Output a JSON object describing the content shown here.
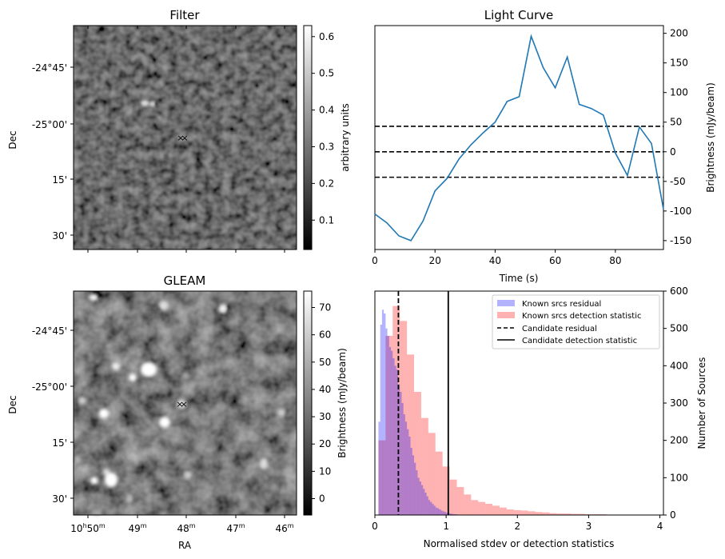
{
  "filter_panel": {
    "title": "Filter",
    "ylabel": "Dec",
    "yticks": [
      "-24°45'",
      "-25°00'",
      "15'",
      "30'"
    ],
    "colorbar": {
      "label": "arbitrary units",
      "ticks": [
        "0.1",
        "0.2",
        "0.3",
        "0.4",
        "0.5",
        "0.6"
      ],
      "range": [
        0.02,
        0.63
      ]
    }
  },
  "gleam_panel": {
    "title": "GLEAM",
    "xlabel": "RA",
    "ylabel": "Dec",
    "yticks": [
      "-24°45'",
      "-25°00'",
      "15'",
      "30'"
    ],
    "xticks": [
      {
        "main": "10",
        "sup1": "h",
        "mid": "50",
        "sup2": "m"
      },
      {
        "main": "49",
        "sup2": "m"
      },
      {
        "main": "48",
        "sup2": "m"
      },
      {
        "main": "47",
        "sup2": "m"
      },
      {
        "main": "46",
        "sup2": "m"
      }
    ],
    "colorbar": {
      "label": "Brightness (mJy/beam)",
      "ticks": [
        "0",
        "10",
        "20",
        "30",
        "40",
        "50",
        "60",
        "70"
      ],
      "range": [
        -6,
        76
      ]
    }
  },
  "markers": {
    "candidate_x_color": "#0000ff",
    "candidate_o_color": "#ff0000"
  },
  "chart_data": [
    {
      "type": "line",
      "title": "Light Curve",
      "xlabel": "Time (s)",
      "ylabel": "Brightness (mJy/beam)",
      "xlim": [
        0,
        96
      ],
      "ylim": [
        -165,
        213
      ],
      "xticks": [
        0,
        20,
        40,
        60,
        80
      ],
      "yticks": [
        -150,
        -100,
        -50,
        0,
        50,
        100,
        150,
        200
      ],
      "series": [
        {
          "color": "#1f77b4",
          "x": [
            0,
            4,
            8,
            12,
            16,
            20,
            24,
            28,
            32,
            36,
            40,
            44,
            48,
            52,
            56,
            60,
            64,
            68,
            72,
            76,
            80,
            84,
            88,
            92,
            96
          ],
          "y": [
            -105,
            -120,
            -142,
            -150,
            -117,
            -66,
            -45,
            -12,
            12,
            32,
            50,
            85,
            93,
            195,
            142,
            108,
            160,
            80,
            73,
            62,
            -2,
            -40,
            42,
            14,
            -97
          ]
        }
      ],
      "hlines": [
        {
          "y": 43,
          "style": "dashed",
          "color": "#000000"
        },
        {
          "y": 0,
          "style": "dashed",
          "color": "#000000"
        },
        {
          "y": -43,
          "style": "dashed",
          "color": "#000000"
        }
      ]
    },
    {
      "type": "histogram",
      "xlabel": "Normalised stdev or detection statistics",
      "ylabel": "Number of Sources",
      "xlim": [
        0,
        4.05
      ],
      "ylim": [
        0,
        600
      ],
      "xticks": [
        0,
        1,
        2,
        3,
        4
      ],
      "yticks": [
        0,
        100,
        200,
        300,
        400,
        500,
        600
      ],
      "legend_position": "top-right",
      "bin_width": 0.1,
      "series": [
        {
          "name": "Known srcs residual",
          "color": "#0000ff",
          "alpha": 0.3,
          "bin_start": 0.05,
          "bin_width": 0.025,
          "values": [
            250,
            510,
            550,
            540,
            500,
            480,
            450,
            440,
            420,
            400,
            390,
            350,
            330,
            300,
            270,
            250,
            230,
            210,
            180,
            160,
            140,
            120,
            100,
            90,
            80,
            70,
            60,
            50,
            40,
            35,
            30,
            25,
            20,
            18,
            15,
            12,
            10,
            8,
            6,
            5,
            4,
            3,
            2,
            2,
            1,
            1
          ]
        },
        {
          "name": "Known srcs detection statistic",
          "color": "#ff0000",
          "alpha": 0.3,
          "bin_start": 0.05,
          "bin_width": 0.1,
          "values": [
            200,
            480,
            560,
            520,
            430,
            330,
            260,
            220,
            170,
            130,
            95,
            75,
            55,
            40,
            35,
            30,
            25,
            20,
            15,
            13,
            12,
            10,
            8,
            7,
            5,
            4,
            4,
            3,
            3,
            2,
            2,
            2,
            1,
            1,
            1,
            1,
            1
          ]
        }
      ],
      "vlines": [
        {
          "name": "Candidate residual",
          "x": 0.33,
          "style": "dashed",
          "color": "#000000"
        },
        {
          "name": "Candidate detection statistic",
          "x": 1.03,
          "style": "solid",
          "color": "#000000"
        }
      ]
    }
  ]
}
